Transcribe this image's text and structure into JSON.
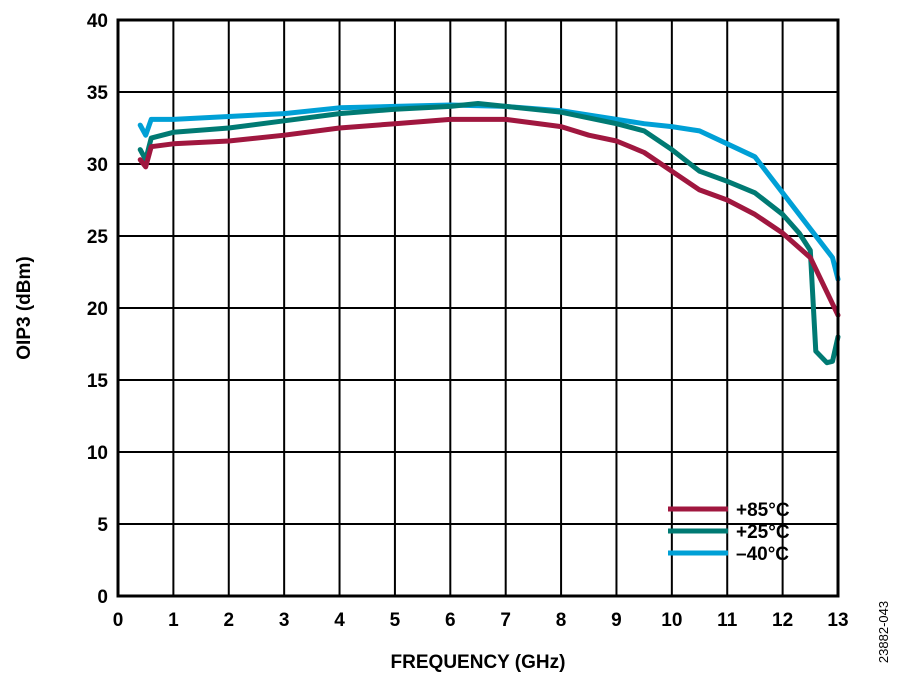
{
  "chart_data": {
    "type": "line",
    "title": "",
    "xlabel": "FREQUENCY (GHz)",
    "ylabel": "OIP3 (dBm)",
    "xlim": [
      0,
      13
    ],
    "ylim": [
      0,
      40
    ],
    "xticks": [
      0,
      1,
      2,
      3,
      4,
      5,
      6,
      7,
      8,
      9,
      10,
      11,
      12,
      13
    ],
    "yticks": [
      0,
      5,
      10,
      15,
      20,
      25,
      30,
      35,
      40
    ],
    "grid": true,
    "legend_position": "bottom-right",
    "figure_id": "23882-043",
    "series": [
      {
        "name": "+85°C",
        "color": "#A0173F",
        "x": [
          0.4,
          0.5,
          0.6,
          1,
          2,
          3,
          4,
          5,
          6,
          7,
          8,
          8.5,
          9,
          9.5,
          10,
          10.5,
          11,
          11.5,
          12,
          12.5,
          13
        ],
        "y": [
          30.3,
          29.8,
          31.2,
          31.4,
          31.6,
          32,
          32.5,
          32.8,
          33.1,
          33.1,
          32.6,
          32,
          31.6,
          30.8,
          29.5,
          28.2,
          27.5,
          26.5,
          25.2,
          23.5,
          19.5
        ]
      },
      {
        "name": "+25°C",
        "color": "#007A73",
        "x": [
          0.4,
          0.5,
          0.6,
          1,
          2,
          3,
          4,
          5,
          6,
          6.5,
          7,
          8,
          9,
          9.5,
          10,
          10.5,
          11,
          11.5,
          12,
          12.3,
          12.5,
          12.6,
          12.8,
          12.9,
          13
        ],
        "y": [
          31,
          30.3,
          31.8,
          32.2,
          32.5,
          33,
          33.5,
          33.8,
          34,
          34.2,
          34,
          33.6,
          32.8,
          32.3,
          31,
          29.5,
          28.8,
          28,
          26.5,
          25.2,
          24,
          17,
          16.2,
          16.3,
          18
        ]
      },
      {
        "name": "–40°C",
        "color": "#00A0D6",
        "x": [
          0.4,
          0.5,
          0.6,
          1,
          2,
          3,
          4,
          5,
          6,
          7,
          8,
          9,
          9.5,
          10,
          10.5,
          11,
          11.5,
          12,
          12.5,
          12.9,
          13
        ],
        "y": [
          32.7,
          32,
          33.1,
          33.1,
          33.3,
          33.5,
          33.9,
          34,
          34.1,
          34,
          33.7,
          33.1,
          32.8,
          32.6,
          32.3,
          31.4,
          30.5,
          28,
          25.5,
          23.5,
          22
        ]
      }
    ]
  }
}
